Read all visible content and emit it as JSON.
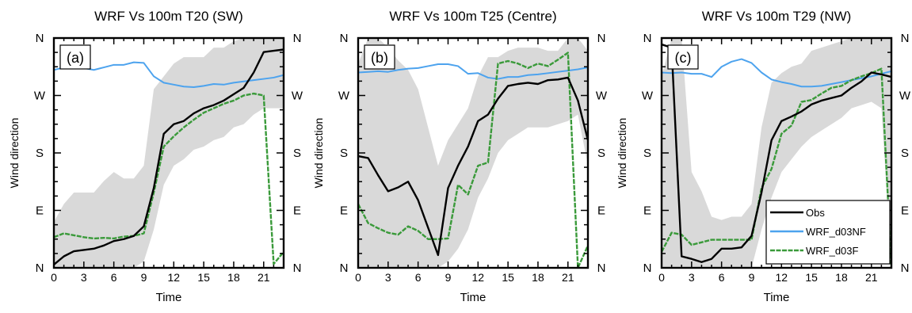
{
  "colors": {
    "obs": "#000000",
    "nf": "#4da3ee",
    "f": "#3a9a3a",
    "band": "#d9d9d9",
    "axis": "#000000"
  },
  "legend": {
    "panel_index": 2,
    "placement": "lower-right",
    "entries": [
      "Obs",
      "WRF_d03NF",
      "WRF_d03F"
    ]
  },
  "chart_data": [
    {
      "type": "line",
      "title": "WRF Vs 100m T20 (SW)",
      "panel_label": "(a)",
      "xlabel": "Time",
      "ylabel": "Wind direction",
      "xlim": [
        0,
        23
      ],
      "ylim": [
        0,
        360
      ],
      "xticks": [
        0,
        3,
        6,
        9,
        12,
        15,
        18,
        21
      ],
      "yticks": [
        0,
        90,
        180,
        270,
        360
      ],
      "ytick_labels": [
        "N",
        "E",
        "S",
        "W",
        "N"
      ],
      "grid": false,
      "x": [
        0,
        1,
        2,
        3,
        4,
        5,
        6,
        7,
        8,
        9,
        10,
        11,
        12,
        13,
        14,
        15,
        16,
        17,
        18,
        19,
        20,
        21,
        22,
        23
      ],
      "series": [
        {
          "name": "Obs",
          "values": [
            5,
            18,
            26,
            28,
            30,
            35,
            42,
            45,
            50,
            65,
            125,
            210,
            225,
            230,
            242,
            250,
            255,
            262,
            272,
            282,
            306,
            338,
            340,
            342
          ]
        },
        {
          "name": "WRF_d03NF",
          "values": [
            310,
            314,
            316,
            313,
            310,
            314,
            318,
            318,
            322,
            321,
            300,
            290,
            287,
            284,
            283,
            285,
            288,
            287,
            290,
            292,
            294,
            296,
            298,
            302
          ]
        },
        {
          "name": "WRF_d03F",
          "values": [
            48,
            54,
            51,
            48,
            46,
            47,
            46,
            49,
            50,
            54,
            118,
            190,
            206,
            220,
            232,
            243,
            250,
            257,
            262,
            270,
            273,
            270,
            6,
            25
          ]
        }
      ],
      "band": {
        "upper": [
          72,
          100,
          118,
          118,
          118,
          136,
          150,
          140,
          140,
          160,
          280,
          300,
          320,
          330,
          330,
          330,
          345,
          345,
          355,
          360,
          360,
          360,
          360,
          360
        ],
        "lower": [
          0,
          0,
          0,
          0,
          0,
          0,
          0,
          0,
          0,
          10,
          60,
          130,
          160,
          170,
          185,
          190,
          200,
          205,
          220,
          225,
          240,
          250,
          250,
          250
        ]
      }
    },
    {
      "type": "line",
      "title": "WRF Vs 100m T25 (Centre)",
      "panel_label": "(b)",
      "xlabel": "Time",
      "ylabel": "Wind direction",
      "xlim": [
        0,
        23
      ],
      "ylim": [
        0,
        360
      ],
      "xticks": [
        0,
        3,
        6,
        9,
        12,
        15,
        18,
        21
      ],
      "yticks": [
        0,
        90,
        180,
        270,
        360
      ],
      "ytick_labels": [
        "N",
        "E",
        "S",
        "W",
        "N"
      ],
      "grid": false,
      "x": [
        0,
        1,
        2,
        3,
        4,
        5,
        6,
        7,
        8,
        9,
        10,
        11,
        12,
        13,
        14,
        15,
        16,
        17,
        18,
        19,
        20,
        21,
        22,
        23
      ],
      "series": [
        {
          "name": "Obs",
          "values": [
            175,
            172,
            145,
            120,
            126,
            135,
            106,
            63,
            20,
            125,
            160,
            190,
            230,
            240,
            265,
            285,
            288,
            290,
            288,
            294,
            295,
            298,
            262,
            200
          ]
        },
        {
          "name": "WRF_d03NF",
          "values": [
            306,
            307,
            308,
            307,
            310,
            312,
            313,
            316,
            319,
            319,
            316,
            304,
            305,
            298,
            296,
            299,
            299,
            302,
            303,
            305,
            307,
            309,
            311,
            314
          ]
        },
        {
          "name": "WRF_d03F",
          "values": [
            100,
            70,
            62,
            55,
            52,
            65,
            58,
            45,
            45,
            46,
            130,
            115,
            160,
            165,
            320,
            324,
            320,
            313,
            320,
            316,
            326,
            337,
            0,
            35
          ]
        }
      ],
      "band": {
        "upper": [
          320,
          360,
          360,
          345,
          325,
          310,
          280,
          220,
          160,
          200,
          225,
          250,
          300,
          330,
          330,
          340,
          345,
          345,
          345,
          340,
          340,
          360,
          360,
          340
        ],
        "lower": [
          0,
          0,
          0,
          0,
          0,
          0,
          0,
          0,
          0,
          10,
          30,
          60,
          110,
          140,
          180,
          200,
          210,
          220,
          220,
          220,
          225,
          230,
          240,
          160
        ]
      }
    },
    {
      "type": "line",
      "title": "WRF Vs 100m T29 (NW)",
      "panel_label": "(c)",
      "xlabel": "Time",
      "ylabel": "Wind direction",
      "xlim": [
        0,
        23
      ],
      "ylim": [
        0,
        360
      ],
      "xticks": [
        0,
        3,
        6,
        9,
        12,
        15,
        18,
        21
      ],
      "yticks": [
        0,
        90,
        180,
        270,
        360
      ],
      "ytick_labels": [
        "N",
        "E",
        "S",
        "W",
        "N"
      ],
      "grid": false,
      "x": [
        0,
        1,
        2,
        3,
        4,
        5,
        6,
        7,
        8,
        9,
        10,
        11,
        12,
        13,
        14,
        15,
        16,
        17,
        18,
        19,
        20,
        21,
        22,
        23
      ],
      "series": [
        {
          "name": "Obs",
          "values": [
            350,
            345,
            18,
            14,
            9,
            14,
            30,
            30,
            32,
            50,
            118,
            200,
            230,
            237,
            245,
            256,
            262,
            266,
            270,
            282,
            292,
            306,
            303,
            299
          ]
        },
        {
          "name": "WRF_d03NF",
          "values": [
            306,
            305,
            306,
            304,
            304,
            299,
            315,
            323,
            327,
            321,
            306,
            295,
            291,
            288,
            284,
            284,
            285,
            288,
            291,
            294,
            297,
            300,
            304,
            308
          ]
        },
        {
          "name": "WRF_d03F",
          "values": [
            25,
            55,
            52,
            36,
            40,
            44,
            44,
            44,
            44,
            44,
            125,
            155,
            210,
            223,
            260,
            263,
            273,
            282,
            285,
            294,
            300,
            305,
            312,
            0
          ]
        }
      ],
      "band": {
        "upper": [
          300,
          360,
          360,
          150,
          120,
          80,
          75,
          80,
          80,
          100,
          220,
          290,
          305,
          315,
          320,
          340,
          345,
          350,
          355,
          360,
          360,
          360,
          360,
          360
        ],
        "lower": [
          0,
          0,
          0,
          0,
          0,
          0,
          0,
          0,
          0,
          0,
          60,
          110,
          150,
          170,
          190,
          205,
          215,
          225,
          235,
          250,
          255,
          260,
          250,
          0
        ]
      }
    }
  ]
}
